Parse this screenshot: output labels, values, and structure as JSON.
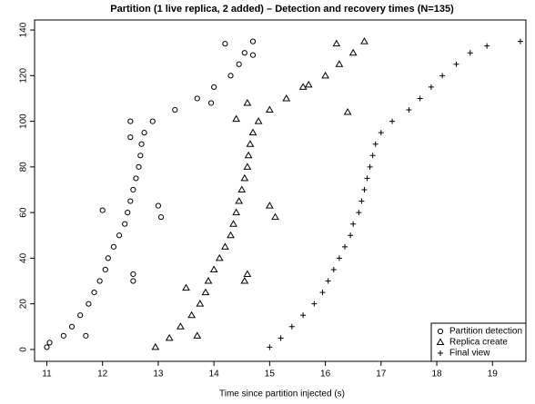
{
  "chart_data": {
    "type": "scatter",
    "title": "Partition (1 live replica, 2 added) – Detection and recovery times (N=135)",
    "x_label": "Time since partition injected (s)",
    "xlim": [
      10.78,
      19.6
    ],
    "xticks": [
      11,
      12,
      13,
      14,
      15,
      16,
      17,
      18,
      19
    ],
    "ylim": [
      -5.2,
      144.4
    ],
    "yticks": [
      0,
      20,
      40,
      60,
      80,
      100,
      120,
      140
    ],
    "legend": "lower right",
    "series": [
      {
        "name": "Partition detection",
        "marker": "circle",
        "color": "#000000",
        "x": [
          11.0,
          11.05,
          11.3,
          11.45,
          11.6,
          11.75,
          11.85,
          11.95,
          12.05,
          12.1,
          12.2,
          12.3,
          12.4,
          12.45,
          12.5,
          12.55,
          12.6,
          12.65,
          12.68,
          12.7,
          12.75,
          12.9,
          13.3,
          13.7,
          14.0,
          14.3,
          14.45,
          14.55,
          14.7,
          11.7,
          12.55,
          12.55,
          12.0,
          13.0,
          13.05,
          12.5,
          12.5,
          13.95,
          14.2,
          14.7
        ],
        "values": [
          1,
          3,
          6,
          10,
          15,
          20,
          25,
          30,
          35,
          40,
          45,
          50,
          55,
          60,
          65,
          70,
          75,
          80,
          85,
          90,
          95,
          100,
          105,
          110,
          115,
          120,
          125,
          130,
          135,
          6,
          30,
          33,
          61,
          63,
          58,
          93,
          100,
          108,
          134,
          129
        ]
      },
      {
        "name": "Replica create",
        "marker": "triangle",
        "color": "#000000",
        "x": [
          12.95,
          13.2,
          13.4,
          13.6,
          13.75,
          13.85,
          13.9,
          14.0,
          14.1,
          14.2,
          14.3,
          14.35,
          14.4,
          14.45,
          14.5,
          14.55,
          14.6,
          14.62,
          14.65,
          14.7,
          14.8,
          15.0,
          15.3,
          15.6,
          16.0,
          16.25,
          16.5,
          16.7,
          13.7,
          13.5,
          14.55,
          14.6,
          15.0,
          15.1,
          14.4,
          14.6,
          16.4,
          16.2,
          15.7
        ],
        "values": [
          1,
          5,
          10,
          15,
          20,
          25,
          30,
          35,
          40,
          45,
          50,
          55,
          60,
          65,
          70,
          75,
          80,
          85,
          90,
          95,
          100,
          105,
          110,
          115,
          120,
          125,
          130,
          135,
          6,
          27,
          30,
          33,
          63,
          58,
          101,
          108,
          104,
          134,
          116
        ]
      },
      {
        "name": "Final view",
        "marker": "plus",
        "color": "#000000",
        "x": [
          15.0,
          15.2,
          15.4,
          15.6,
          15.8,
          15.95,
          16.05,
          16.15,
          16.25,
          16.35,
          16.45,
          16.5,
          16.6,
          16.65,
          16.7,
          16.75,
          16.8,
          16.85,
          16.9,
          17.0,
          17.2,
          17.5,
          17.7,
          17.9,
          18.1,
          18.35,
          18.6,
          18.9,
          19.5
        ],
        "values": [
          1,
          5,
          10,
          15,
          20,
          25,
          30,
          35,
          40,
          45,
          50,
          55,
          60,
          65,
          70,
          75,
          80,
          85,
          90,
          95,
          100,
          105,
          110,
          115,
          120,
          125,
          130,
          133,
          135
        ]
      }
    ]
  }
}
